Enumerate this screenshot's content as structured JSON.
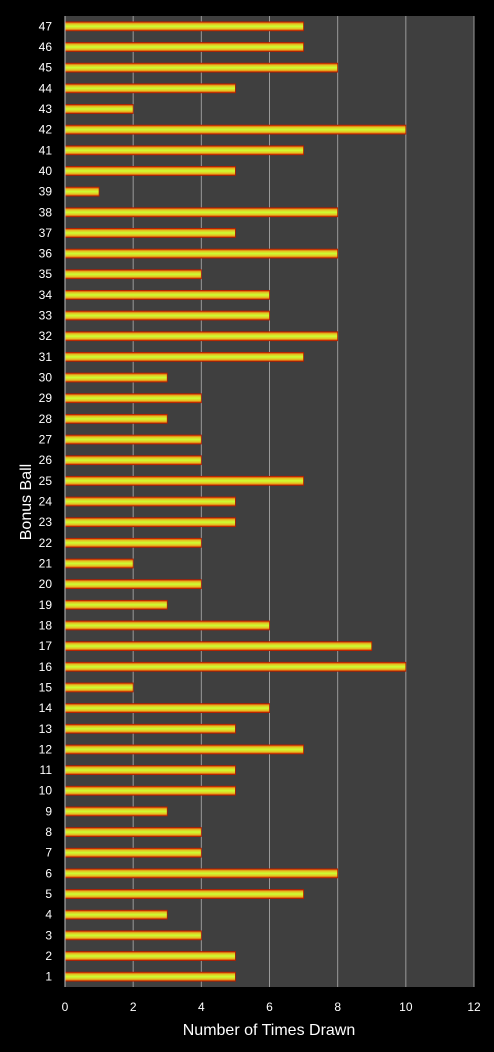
{
  "chart_data": {
    "type": "bar",
    "orientation": "horizontal",
    "title": "",
    "xlabel": "Number of Times Drawn",
    "ylabel": "Bonus Ball",
    "xlim": [
      0,
      12
    ],
    "xticks": [
      0,
      2,
      4,
      6,
      8,
      10,
      12
    ],
    "grid": true,
    "legend": "none",
    "colors": {
      "background": "#000000",
      "plot_area": "#3f3f3f",
      "gridline": "#9a9a9a",
      "bar_center": "#ccff33",
      "bar_mid": "#e6c020",
      "bar_edge": "#d62400",
      "text": "#ffffff"
    },
    "categories": [
      "1",
      "2",
      "3",
      "4",
      "5",
      "6",
      "7",
      "8",
      "9",
      "10",
      "11",
      "12",
      "13",
      "14",
      "15",
      "16",
      "17",
      "18",
      "19",
      "20",
      "21",
      "22",
      "23",
      "24",
      "25",
      "26",
      "27",
      "28",
      "29",
      "30",
      "31",
      "32",
      "33",
      "34",
      "35",
      "36",
      "37",
      "38",
      "39",
      "40",
      "41",
      "42",
      "43",
      "44",
      "45",
      "46",
      "47"
    ],
    "values": [
      5,
      5,
      4,
      3,
      7,
      8,
      4,
      4,
      3,
      5,
      5,
      7,
      5,
      6,
      2,
      10,
      9,
      6,
      3,
      4,
      2,
      4,
      5,
      5,
      7,
      4,
      4,
      3,
      4,
      3,
      7,
      8,
      6,
      6,
      4,
      8,
      5,
      8,
      1,
      5,
      7,
      10,
      2,
      5,
      8,
      7,
      7
    ]
  }
}
